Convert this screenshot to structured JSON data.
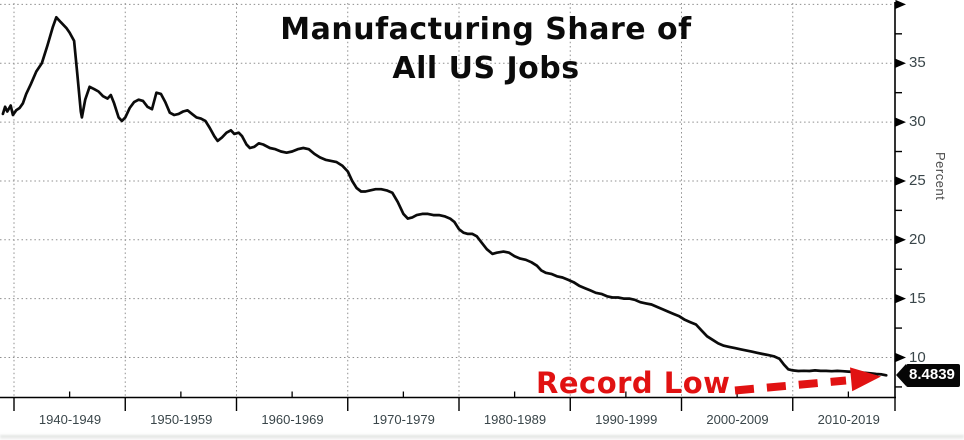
{
  "title": {
    "line1": "Manufacturing Share of",
    "line2": "All US Jobs"
  },
  "y_axis": {
    "title": "Percent",
    "labeled_ticks": [
      35,
      30,
      25,
      20,
      15,
      10
    ],
    "unlabeled_major_tick": 40,
    "minor_ticks": [
      37.5,
      32.5,
      27.5,
      22.5,
      17.5,
      12.5,
      7.5
    ]
  },
  "x_axis": {
    "decade_labels": [
      "1940-1949",
      "1950-1959",
      "1960-1969",
      "1970-1979",
      "1980-1989",
      "1990-1999",
      "2000-2009",
      "2010-2019"
    ],
    "boundary_years": [
      1940,
      1950,
      1960,
      1970,
      1980,
      1990,
      2000,
      2010,
      2020
    ],
    "minor_tick_years": [
      1945,
      1955,
      1965,
      1975,
      1985,
      1995,
      2005,
      2015
    ]
  },
  "annotation": {
    "text": "Record Low"
  },
  "badge": {
    "value": "8.4839"
  },
  "colors": {
    "line": "#0b0b0b",
    "grid": "#8f8f8f",
    "axis": "#000000",
    "tick_text": "#3a464a",
    "annotation_red": "#e11212",
    "badge_bg": "#060606",
    "badge_text": "#ffffff"
  },
  "chart_data": {
    "type": "line",
    "title": "Manufacturing Share of All US Jobs",
    "ylabel": "Percent",
    "xlabel": "",
    "ylim": [
      6.6,
      40.4
    ],
    "xlim": [
      1938.7,
      2019.3
    ],
    "grid": "dotted",
    "legend_position": "none",
    "annotations": [
      {
        "text": "Record Low",
        "points_to_value": 8.4839
      }
    ],
    "last_value_label": "8.4839",
    "series": [
      {
        "name": "Manufacturing share of all US jobs (%)",
        "points": [
          [
            1939.0,
            30.7
          ],
          [
            1939.2,
            31.3
          ],
          [
            1939.4,
            30.9
          ],
          [
            1939.7,
            31.4
          ],
          [
            1939.9,
            30.6
          ],
          [
            1940.2,
            31.0
          ],
          [
            1940.5,
            31.2
          ],
          [
            1940.8,
            31.6
          ],
          [
            1941.1,
            32.4
          ],
          [
            1941.5,
            33.2
          ],
          [
            1942.0,
            34.3
          ],
          [
            1942.5,
            35.0
          ],
          [
            1943.0,
            36.5
          ],
          [
            1943.5,
            38.1
          ],
          [
            1943.8,
            38.9
          ],
          [
            1944.2,
            38.5
          ],
          [
            1944.7,
            38.0
          ],
          [
            1945.0,
            37.6
          ],
          [
            1945.4,
            36.9
          ],
          [
            1945.7,
            34.0
          ],
          [
            1946.0,
            30.9
          ],
          [
            1946.1,
            30.4
          ],
          [
            1946.4,
            31.9
          ],
          [
            1946.8,
            33.0
          ],
          [
            1947.2,
            32.8
          ],
          [
            1947.6,
            32.6
          ],
          [
            1948.0,
            32.2
          ],
          [
            1948.4,
            32.0
          ],
          [
            1948.7,
            32.3
          ],
          [
            1949.0,
            31.6
          ],
          [
            1949.4,
            30.4
          ],
          [
            1949.7,
            30.1
          ],
          [
            1950.0,
            30.4
          ],
          [
            1950.4,
            31.2
          ],
          [
            1950.8,
            31.7
          ],
          [
            1951.2,
            31.9
          ],
          [
            1951.6,
            31.8
          ],
          [
            1952.0,
            31.3
          ],
          [
            1952.4,
            31.1
          ],
          [
            1952.8,
            32.5
          ],
          [
            1953.2,
            32.4
          ],
          [
            1953.6,
            31.7
          ],
          [
            1954.0,
            30.8
          ],
          [
            1954.4,
            30.6
          ],
          [
            1954.8,
            30.7
          ],
          [
            1955.2,
            30.9
          ],
          [
            1955.6,
            31.0
          ],
          [
            1956.0,
            30.7
          ],
          [
            1956.4,
            30.4
          ],
          [
            1956.8,
            30.3
          ],
          [
            1957.2,
            30.1
          ],
          [
            1957.6,
            29.5
          ],
          [
            1958.0,
            28.8
          ],
          [
            1958.3,
            28.4
          ],
          [
            1958.7,
            28.7
          ],
          [
            1959.1,
            29.1
          ],
          [
            1959.5,
            29.3
          ],
          [
            1959.8,
            29.0
          ],
          [
            1960.2,
            29.1
          ],
          [
            1960.5,
            28.8
          ],
          [
            1960.9,
            28.1
          ],
          [
            1961.2,
            27.8
          ],
          [
            1961.6,
            27.9
          ],
          [
            1962.0,
            28.2
          ],
          [
            1962.4,
            28.1
          ],
          [
            1963.0,
            27.8
          ],
          [
            1963.5,
            27.7
          ],
          [
            1964.0,
            27.5
          ],
          [
            1964.5,
            27.4
          ],
          [
            1965.0,
            27.5
          ],
          [
            1965.5,
            27.7
          ],
          [
            1966.0,
            27.8
          ],
          [
            1966.5,
            27.7
          ],
          [
            1967.0,
            27.3
          ],
          [
            1967.5,
            27.0
          ],
          [
            1968.0,
            26.8
          ],
          [
            1968.5,
            26.7
          ],
          [
            1969.0,
            26.6
          ],
          [
            1969.5,
            26.3
          ],
          [
            1970.0,
            25.8
          ],
          [
            1970.4,
            25.0
          ],
          [
            1970.8,
            24.4
          ],
          [
            1971.2,
            24.1
          ],
          [
            1971.6,
            24.1
          ],
          [
            1972.0,
            24.2
          ],
          [
            1972.5,
            24.3
          ],
          [
            1973.0,
            24.3
          ],
          [
            1973.5,
            24.2
          ],
          [
            1974.0,
            24.0
          ],
          [
            1974.5,
            23.2
          ],
          [
            1975.0,
            22.2
          ],
          [
            1975.4,
            21.8
          ],
          [
            1975.8,
            21.9
          ],
          [
            1976.2,
            22.1
          ],
          [
            1976.7,
            22.2
          ],
          [
            1977.2,
            22.2
          ],
          [
            1977.7,
            22.1
          ],
          [
            1978.2,
            22.1
          ],
          [
            1978.7,
            22.0
          ],
          [
            1979.2,
            21.8
          ],
          [
            1979.6,
            21.5
          ],
          [
            1980.0,
            20.9
          ],
          [
            1980.4,
            20.6
          ],
          [
            1980.8,
            20.5
          ],
          [
            1981.2,
            20.5
          ],
          [
            1981.6,
            20.3
          ],
          [
            1982.0,
            19.8
          ],
          [
            1982.5,
            19.2
          ],
          [
            1983.0,
            18.8
          ],
          [
            1983.4,
            18.9
          ],
          [
            1984.0,
            19.0
          ],
          [
            1984.5,
            18.9
          ],
          [
            1985.0,
            18.6
          ],
          [
            1985.5,
            18.4
          ],
          [
            1986.0,
            18.3
          ],
          [
            1986.5,
            18.1
          ],
          [
            1987.0,
            17.8
          ],
          [
            1987.4,
            17.4
          ],
          [
            1987.8,
            17.2
          ],
          [
            1988.3,
            17.1
          ],
          [
            1988.8,
            16.9
          ],
          [
            1989.3,
            16.8
          ],
          [
            1989.8,
            16.6
          ],
          [
            1990.3,
            16.4
          ],
          [
            1990.8,
            16.1
          ],
          [
            1991.3,
            15.9
          ],
          [
            1991.8,
            15.7
          ],
          [
            1992.3,
            15.5
          ],
          [
            1992.8,
            15.4
          ],
          [
            1993.3,
            15.2
          ],
          [
            1993.8,
            15.1
          ],
          [
            1994.3,
            15.1
          ],
          [
            1994.8,
            15.0
          ],
          [
            1995.3,
            15.0
          ],
          [
            1995.8,
            14.9
          ],
          [
            1996.3,
            14.7
          ],
          [
            1996.8,
            14.6
          ],
          [
            1997.3,
            14.5
          ],
          [
            1997.8,
            14.3
          ],
          [
            1998.3,
            14.1
          ],
          [
            1998.8,
            13.9
          ],
          [
            1999.3,
            13.7
          ],
          [
            1999.8,
            13.5
          ],
          [
            2000.3,
            13.2
          ],
          [
            2000.8,
            13.0
          ],
          [
            2001.3,
            12.8
          ],
          [
            2001.8,
            12.3
          ],
          [
            2002.3,
            11.8
          ],
          [
            2002.8,
            11.5
          ],
          [
            2003.3,
            11.2
          ],
          [
            2003.8,
            11.0
          ],
          [
            2004.3,
            10.9
          ],
          [
            2004.8,
            10.8
          ],
          [
            2005.3,
            10.7
          ],
          [
            2005.8,
            10.6
          ],
          [
            2006.3,
            10.5
          ],
          [
            2006.8,
            10.4
          ],
          [
            2007.3,
            10.3
          ],
          [
            2007.8,
            10.2
          ],
          [
            2008.3,
            10.1
          ],
          [
            2008.8,
            9.9
          ],
          [
            2009.2,
            9.4
          ],
          [
            2009.6,
            9.0
          ],
          [
            2010.0,
            8.9
          ],
          [
            2010.5,
            8.85
          ],
          [
            2011.0,
            8.87
          ],
          [
            2011.5,
            8.85
          ],
          [
            2012.0,
            8.9
          ],
          [
            2012.5,
            8.86
          ],
          [
            2013.0,
            8.86
          ],
          [
            2013.5,
            8.84
          ],
          [
            2014.0,
            8.86
          ],
          [
            2014.5,
            8.84
          ],
          [
            2015.0,
            8.8
          ],
          [
            2015.5,
            8.78
          ],
          [
            2016.0,
            8.74
          ],
          [
            2016.5,
            8.7
          ],
          [
            2017.0,
            8.66
          ],
          [
            2017.5,
            8.6
          ],
          [
            2018.0,
            8.56
          ],
          [
            2018.4,
            8.4839
          ]
        ]
      }
    ]
  }
}
